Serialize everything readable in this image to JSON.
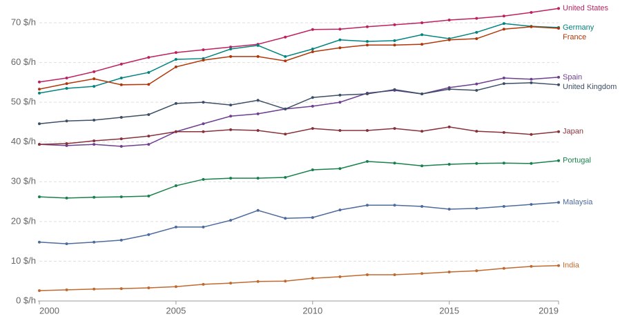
{
  "chart_data": {
    "type": "line",
    "x": [
      2000,
      2001,
      2002,
      2003,
      2004,
      2005,
      2006,
      2007,
      2008,
      2009,
      2010,
      2011,
      2012,
      2013,
      2014,
      2015,
      2016,
      2017,
      2018,
      2019
    ],
    "xlim": [
      2000,
      2019
    ],
    "xticks": [
      2000,
      2005,
      2010,
      2015,
      2019
    ],
    "ylim": [
      0,
      70
    ],
    "yticks": [
      {
        "value": 0,
        "label": "0 $/h"
      },
      {
        "value": 10,
        "label": "10 $/h"
      },
      {
        "value": 20,
        "label": "20 $/h"
      },
      {
        "value": 30,
        "label": "30 $/h"
      },
      {
        "value": 40,
        "label": "40 $/h"
      },
      {
        "value": 50,
        "label": "50 $/h"
      },
      {
        "value": 60,
        "label": "60 $/h"
      },
      {
        "value": 70,
        "label": "70 $/h"
      }
    ],
    "grid": true,
    "series": [
      {
        "name": "United States",
        "color": "#be1f5e",
        "values": [
          55.1,
          56.1,
          57.7,
          59.6,
          61.3,
          62.5,
          63.2,
          63.9,
          64.6,
          66.4,
          68.3,
          68.4,
          69.0,
          69.5,
          70.0,
          70.7,
          71.1,
          71.7,
          72.6,
          73.6
        ]
      },
      {
        "name": "Germany",
        "color": "#00847e",
        "values": [
          52.3,
          53.5,
          54.0,
          56.1,
          57.5,
          60.8,
          61.0,
          63.4,
          64.3,
          61.5,
          63.4,
          65.7,
          65.3,
          65.5,
          67.0,
          66.0,
          67.6,
          69.8,
          69.1,
          68.8
        ]
      },
      {
        "name": "France",
        "color": "#b13507",
        "values": [
          53.3,
          54.7,
          55.9,
          54.4,
          54.5,
          58.9,
          60.6,
          61.5,
          61.5,
          60.4,
          62.7,
          63.7,
          64.4,
          64.4,
          64.6,
          65.7,
          66.0,
          68.4,
          69.0,
          68.6
        ]
      },
      {
        "name": "Spain",
        "color": "#6d3e91",
        "values": [
          39.4,
          39.1,
          39.4,
          38.9,
          39.4,
          42.6,
          44.6,
          46.5,
          47.1,
          48.3,
          49.0,
          50.0,
          52.3,
          53.0,
          52.1,
          53.7,
          54.6,
          56.1,
          55.8,
          56.3
        ]
      },
      {
        "name": "United Kingdom",
        "color": "#3c4e66",
        "values": [
          44.6,
          45.3,
          45.5,
          46.2,
          46.9,
          49.7,
          50.0,
          49.3,
          50.5,
          48.3,
          51.2,
          51.8,
          52.1,
          53.2,
          52.1,
          53.3,
          53.0,
          54.7,
          54.9,
          54.4
        ]
      },
      {
        "name": "Japan",
        "color": "#883039",
        "values": [
          39.4,
          39.6,
          40.3,
          40.8,
          41.5,
          42.6,
          42.6,
          43.1,
          42.9,
          42.0,
          43.4,
          42.9,
          42.9,
          43.4,
          42.7,
          43.8,
          42.7,
          42.4,
          41.9,
          42.6
        ]
      },
      {
        "name": "Portugal",
        "color": "#18804a",
        "values": [
          26.2,
          25.9,
          26.1,
          26.2,
          26.4,
          29.0,
          30.6,
          30.9,
          30.9,
          31.1,
          33.0,
          33.3,
          35.1,
          34.7,
          34.0,
          34.4,
          34.6,
          34.7,
          34.6,
          35.3
        ]
      },
      {
        "name": "Malaysia",
        "color": "#4c6a9c",
        "values": [
          14.8,
          14.4,
          14.8,
          15.3,
          16.7,
          18.6,
          18.6,
          20.3,
          22.8,
          20.8,
          21.0,
          22.9,
          24.1,
          24.1,
          23.8,
          23.1,
          23.3,
          23.8,
          24.3,
          24.8
        ]
      },
      {
        "name": "India",
        "color": "#c0692e",
        "values": [
          2.6,
          2.8,
          3.0,
          3.1,
          3.3,
          3.6,
          4.2,
          4.5,
          4.9,
          5.0,
          5.7,
          6.1,
          6.6,
          6.6,
          6.9,
          7.3,
          7.6,
          8.2,
          8.7,
          8.9
        ]
      }
    ]
  }
}
